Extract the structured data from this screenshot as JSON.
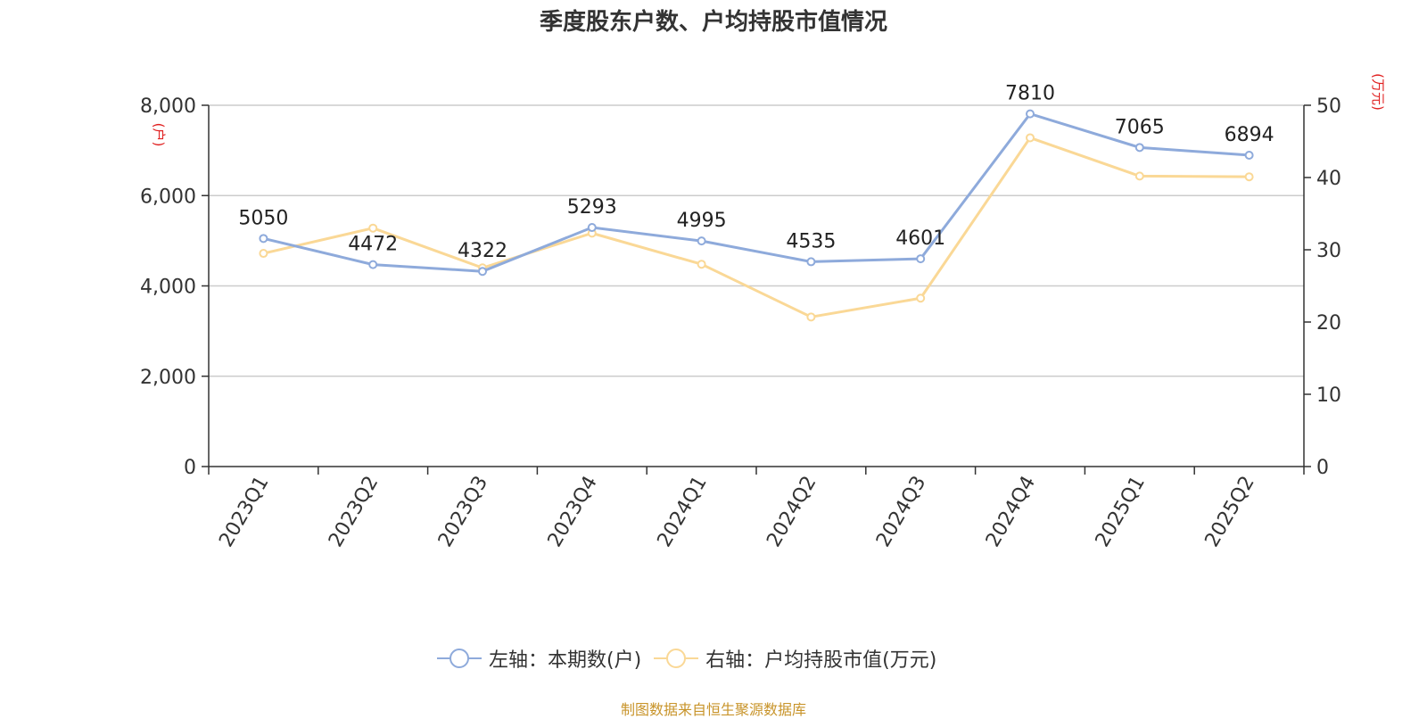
{
  "title": "季度股东户数、户均持股市值情况",
  "source": "制图数据来自恒生聚源数据库",
  "chart_data": {
    "type": "line",
    "categories": [
      "2023Q1",
      "2023Q2",
      "2023Q3",
      "2023Q4",
      "2024Q1",
      "2024Q2",
      "2024Q3",
      "2024Q4",
      "2025Q1",
      "2025Q2"
    ],
    "left_axis": {
      "label": "(户)",
      "ylim": [
        0,
        8000
      ],
      "ticks": [
        0,
        2000,
        4000,
        6000,
        8000
      ],
      "tick_labels": [
        "0",
        "2,000",
        "4,000",
        "6,000",
        "8,000"
      ]
    },
    "right_axis": {
      "label": "(万元)",
      "ylim": [
        0,
        50
      ],
      "ticks": [
        0,
        10,
        20,
        30,
        40,
        50
      ],
      "tick_labels": [
        "0",
        "10",
        "20",
        "30",
        "40",
        "50"
      ]
    },
    "series": [
      {
        "name": "左轴：本期数(户)",
        "axis": "left",
        "color": "#8eaadb",
        "values": [
          5050,
          4472,
          4322,
          5293,
          4995,
          4535,
          4601,
          7810,
          7065,
          6894
        ],
        "labels": [
          "5050",
          "4472",
          "4322",
          "5293",
          "4995",
          "4535",
          "4601",
          "7810",
          "7065",
          "6894"
        ]
      },
      {
        "name": "右轴：户均持股市值(万元)",
        "axis": "right",
        "color": "#fad896",
        "values": [
          29.5,
          33.0,
          27.5,
          32.3,
          28.0,
          20.7,
          23.3,
          45.5,
          40.2,
          40.1
        ]
      }
    ],
    "grid": true,
    "legend_position": "bottom"
  }
}
